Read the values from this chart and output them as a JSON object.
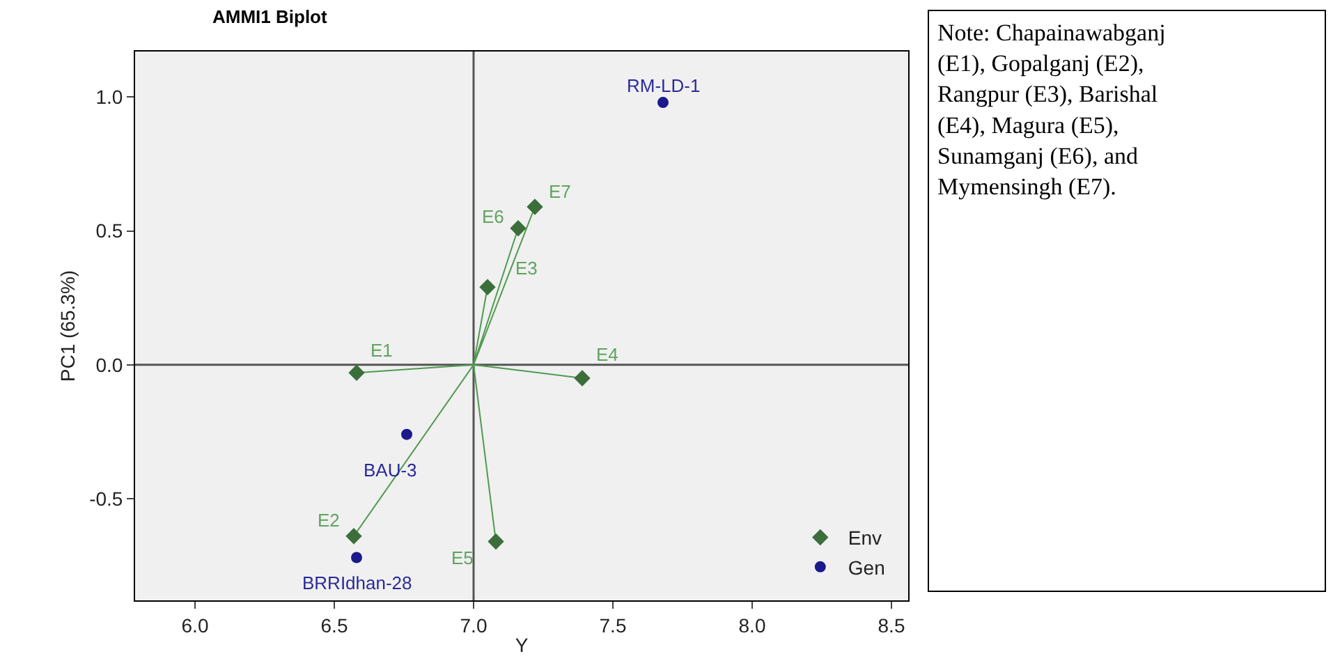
{
  "chart_data": {
    "type": "scatter",
    "title": "AMMI1 Biplot",
    "xlabel": "Y",
    "ylabel": "PC1 (65.3%)",
    "xlim": [
      5.785,
      8.56
    ],
    "ylim": [
      -0.88,
      1.17
    ],
    "xticks": [
      {
        "value": 6,
        "label": "6.0"
      },
      {
        "value": 6.5,
        "label": "6.5"
      },
      {
        "value": 7,
        "label": "7.0"
      },
      {
        "value": 7.5,
        "label": "7.5"
      },
      {
        "value": 8,
        "label": "8.0"
      },
      {
        "value": 8.5,
        "label": "8.5"
      }
    ],
    "yticks": [
      {
        "value": 1,
        "label": "1.0"
      },
      0.5,
      {
        "value": 0,
        "label": "0.0"
      },
      -0.5
    ],
    "grid": false,
    "legend": "bottom right",
    "series": [
      {
        "type": "line",
        "color": "#4f9a4f",
        "x": [
          6.58,
          7.0,
          6.57,
          7.0,
          7.05,
          7.0,
          7.39,
          7.0,
          7.08,
          7.0,
          7.16,
          7.0,
          7.22
        ],
        "values": [
          -0.03,
          0,
          -0.64,
          0,
          0.29,
          0,
          -0.05,
          0,
          -0.66,
          0,
          0.51,
          0,
          0.59
        ],
        "marker": "none"
      },
      {
        "name": "Env",
        "color": "#3b6e3b",
        "marker": "diamond",
        "x": [
          6.58,
          6.57,
          7.05,
          7.39,
          7.08,
          7.16,
          7.22
        ],
        "values": [
          -0.03,
          -0.64,
          0.29,
          -0.05,
          -0.66,
          0.51,
          0.59
        ]
      },
      {
        "name": "Gen",
        "color": "#1a1a8c",
        "marker": "circle",
        "x": [
          7.68,
          6.76,
          6.58
        ],
        "values": [
          0.98,
          -0.26,
          -0.72
        ]
      }
    ],
    "ref_lines": [
      {
        "axis": "x",
        "value": 7.0,
        "color": "#555555"
      },
      {
        "axis": "y",
        "value": 0.0,
        "color": "#555555"
      }
    ],
    "annotations": [
      {
        "text": "E1",
        "x": 6.58,
        "y": -0.03
      },
      {
        "text": "E2",
        "x": 6.57,
        "y": -0.64
      },
      {
        "text": "E3",
        "x": 7.05,
        "y": 0.29
      },
      {
        "text": "E4",
        "x": 7.39,
        "y": -0.05
      },
      {
        "text": "E5",
        "x": 7.08,
        "y": -0.66
      },
      {
        "text": "E6",
        "x": 7.16,
        "y": 0.51
      },
      {
        "text": "E7",
        "x": 7.22,
        "y": 0.59
      },
      {
        "text": "RM-LD-1",
        "x": 7.68,
        "y": 0.98
      },
      {
        "text": "BAU-3",
        "x": 6.76,
        "y": -0.26
      },
      {
        "text": "BRRIdhan-28",
        "x": 6.58,
        "y": -0.72
      },
      "Note: Chapainawabganj (E1), Gopalganj (E2), Rangpur (E3), Barishal (E4), Magura (E5), Sunamganj (E6), and Mymensingh (E7)."
    ]
  }
}
